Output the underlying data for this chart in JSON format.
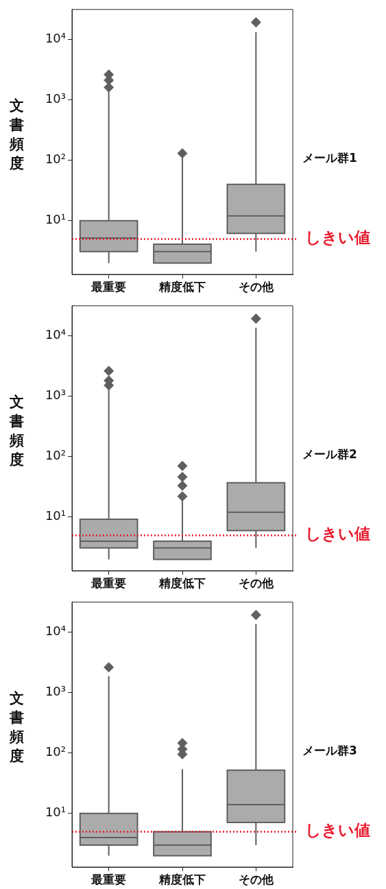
{
  "chart_data": [
    {
      "type": "box",
      "annotations": [
        "メール群1"
      ],
      "ylabel": "文書頻度",
      "categories": [
        "最重要",
        "精度低下",
        "その他"
      ],
      "color": "#ababab",
      "marker": "diamond",
      "log": "y",
      "grid": false,
      "ylim": [
        1.3,
        31000
      ],
      "yticks": [
        {
          "value": 10,
          "label": "10¹"
        },
        {
          "value": 100,
          "label": "10²"
        },
        {
          "value": 1000,
          "label": "10³"
        },
        {
          "value": 10000,
          "label": "10⁴"
        }
      ],
      "boxes": [
        {
          "low": 2,
          "q1": 3.1,
          "median": 5.2,
          "q3": 10,
          "high": 1400,
          "outliers": [
            1600,
            2100,
            2600
          ]
        },
        {
          "low": 2,
          "q1": 2,
          "median": 3.1,
          "q3": 4.1,
          "high": 110,
          "outliers": [
            130
          ]
        },
        {
          "low": 3.1,
          "q1": 6.2,
          "median": 12,
          "q3": 40,
          "high": 13000,
          "outliers": [
            19000
          ]
        }
      ],
      "ref_lines": [
        {
          "axis": "y",
          "value": 5,
          "label": "しきい値",
          "color": "#e8192c",
          "line_style": "dotted"
        }
      ]
    },
    {
      "type": "box",
      "annotations": [
        "メール群2"
      ],
      "ylabel": "文書頻度",
      "categories": [
        "最重要",
        "精度低下",
        "その他"
      ],
      "color": "#ababab",
      "marker": "diamond",
      "log": "y",
      "grid": false,
      "ylim": [
        1.3,
        31000
      ],
      "yticks": [
        {
          "value": 10,
          "label": "10¹"
        },
        {
          "value": 100,
          "label": "10²"
        },
        {
          "value": 1000,
          "label": "10³"
        },
        {
          "value": 10000,
          "label": "10⁴"
        }
      ],
      "boxes": [
        {
          "low": 2,
          "q1": 3.1,
          "median": 4,
          "q3": 9.2,
          "high": 1300,
          "outliers": [
            1500,
            1800,
            2600
          ]
        },
        {
          "low": 2,
          "q1": 2,
          "median": 3.1,
          "q3": 4,
          "high": 19,
          "outliers": [
            22,
            33,
            46,
            70
          ]
        },
        {
          "low": 3.1,
          "q1": 6,
          "median": 12,
          "q3": 37,
          "high": 13500,
          "outliers": [
            19000
          ]
        }
      ],
      "ref_lines": [
        {
          "axis": "y",
          "value": 5,
          "label": "しきい値",
          "color": "#e8192c",
          "line_style": "dotted"
        }
      ]
    },
    {
      "type": "box",
      "annotations": [
        "メール群3"
      ],
      "ylabel": "文書頻度",
      "categories": [
        "最重要",
        "精度低下",
        "その他"
      ],
      "color": "#ababab",
      "marker": "diamond",
      "log": "y",
      "grid": false,
      "ylim": [
        1.3,
        31000
      ],
      "yticks": [
        {
          "value": 10,
          "label": "10¹"
        },
        {
          "value": 100,
          "label": "10²"
        },
        {
          "value": 1000,
          "label": "10³"
        },
        {
          "value": 10000,
          "label": "10⁴"
        }
      ],
      "boxes": [
        {
          "low": 2,
          "q1": 3,
          "median": 4,
          "q3": 10,
          "high": 1850,
          "outliers": [
            2600
          ]
        },
        {
          "low": 2,
          "q1": 2,
          "median": 3,
          "q3": 5,
          "high": 54,
          "outliers": [
            95,
            115,
            145
          ]
        },
        {
          "low": 3,
          "q1": 7.1,
          "median": 14,
          "q3": 52,
          "high": 13500,
          "outliers": [
            19000
          ]
        }
      ],
      "ref_lines": [
        {
          "axis": "y",
          "value": 5,
          "label": "しきい値",
          "color": "#e8192c",
          "line_style": "dotted"
        }
      ]
    }
  ]
}
